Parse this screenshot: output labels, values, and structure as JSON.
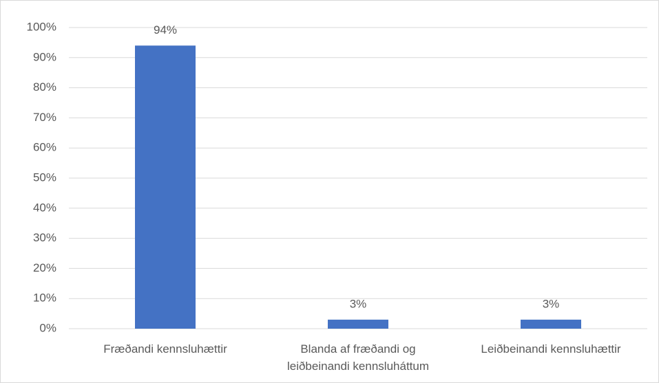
{
  "chart_data": {
    "type": "bar",
    "categories": [
      "Fræðandi kennsluhættir",
      "Blanda af fræðandi og leiðbeinandi kennsluháttum",
      "Leiðbeinandi kennsluhættir"
    ],
    "values": [
      94,
      3,
      3
    ],
    "value_labels": [
      "94%",
      "3%",
      "3%"
    ],
    "color": "#4472c4",
    "ylim": [
      0,
      100
    ],
    "yticks": [
      {
        "value": 0,
        "label": "0%"
      },
      {
        "value": 10,
        "label": "10%"
      },
      {
        "value": 20,
        "label": "20%"
      },
      {
        "value": 30,
        "label": "30%"
      },
      {
        "value": 40,
        "label": "40%"
      },
      {
        "value": 50,
        "label": "50%"
      },
      {
        "value": 60,
        "label": "60%"
      },
      {
        "value": 70,
        "label": "70%"
      },
      {
        "value": 80,
        "label": "80%"
      },
      {
        "value": 90,
        "label": "90%"
      },
      {
        "value": 100,
        "label": "100%"
      }
    ],
    "grid": true
  }
}
